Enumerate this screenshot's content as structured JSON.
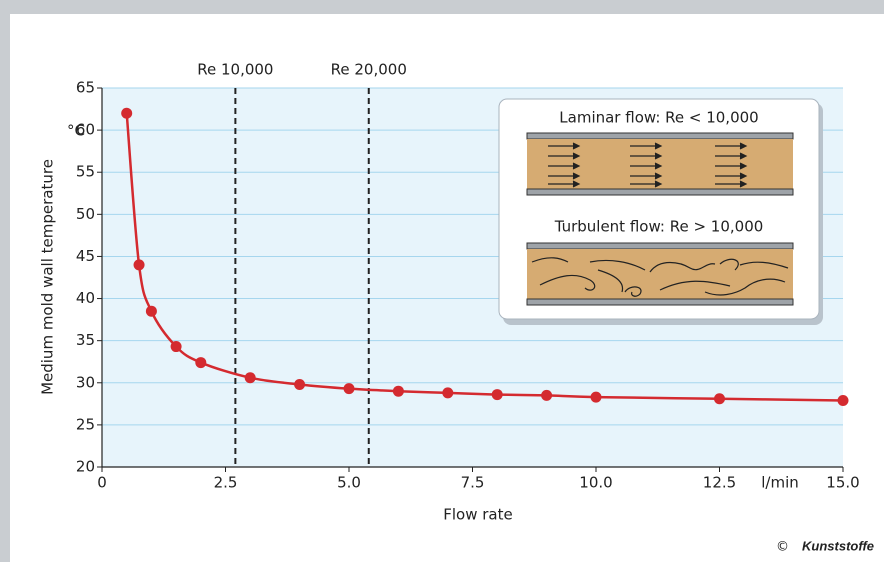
{
  "chart_data": {
    "type": "line",
    "x_label": "Flow rate",
    "y_label": "Medium mold wall temperature",
    "x_unit": "l/min",
    "y_unit": "°C",
    "xlim": [
      0,
      15
    ],
    "ylim": [
      20,
      65
    ],
    "xticks": [
      0,
      2.5,
      {
        "value": 5,
        "label": "5.0"
      },
      {
        "value": 7.5,
        "label": "7.5"
      },
      {
        "value": 10,
        "label": "10.0"
      },
      12.5,
      {
        "value": 15,
        "label": "15.0"
      }
    ],
    "yticks": [
      20,
      25,
      30,
      35,
      40,
      45,
      50,
      55,
      60,
      65
    ],
    "grid": true,
    "series": [
      {
        "color": "#d42a2f",
        "x": [
          0.5,
          0.75,
          1,
          1.5,
          2,
          3,
          4,
          5,
          6,
          7,
          8,
          9,
          10,
          12.5,
          15
        ],
        "values": [
          62,
          44,
          38.5,
          34.3,
          32.4,
          30.6,
          29.8,
          29.3,
          29,
          28.8,
          28.6,
          28.5,
          28.3,
          28.1,
          27.9
        ]
      }
    ],
    "reference_lines": [
      {
        "label": "Re 10,000",
        "x": 2.7
      },
      {
        "label": "Re 20,000",
        "x": 5.4
      }
    ],
    "inset": {
      "laminar": "Laminar flow: Re < 10,000",
      "turbulent": "Turbulent flow: Re > 10,000"
    },
    "credit": {
      "symbol": "©",
      "name": "Kunststoffe"
    }
  }
}
